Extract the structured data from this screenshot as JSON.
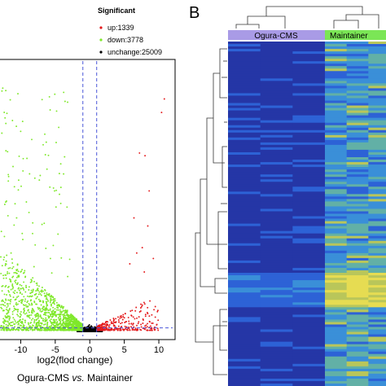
{
  "panel_b_label": "B",
  "chart_data": [
    {
      "type": "scatter",
      "xlabel": "log2(flod change)",
      "caption_prefix": "Ogura-CMS ",
      "caption_italic": "vs.",
      "caption_suffix": " Maintainer",
      "xlim": [
        -13,
        12
      ],
      "ylim": [
        0,
        100
      ],
      "x_ticks": [
        -10,
        -5,
        0,
        5,
        10
      ],
      "x_tick_labels": [
        "-10",
        "-5",
        "0",
        "5",
        "10"
      ],
      "thresholds": {
        "x": [
          -1,
          1
        ],
        "y": 1.3
      },
      "legend": {
        "title": "Significant",
        "placement": "top-right",
        "entries": [
          {
            "label": "up:1339",
            "color": "#e41a1c"
          },
          {
            "label": "down:3778",
            "color": "#7fe82a"
          },
          {
            "label": "unchange:25009",
            "color": "#000000"
          }
        ]
      },
      "series": [
        {
          "label": "up:1339",
          "count": 1339,
          "color": "#e41a1c",
          "outliers": [
            [
              10.8,
              86
            ],
            [
              10.4,
              81
            ],
            [
              7.2,
              66
            ],
            [
              8.0,
              65
            ],
            [
              8.6,
              52
            ],
            [
              6.4,
              42
            ],
            [
              8.4,
              39
            ],
            [
              7.6,
              31
            ],
            [
              6.8,
              29
            ],
            [
              9.2,
              27
            ],
            [
              5.8,
              25
            ],
            [
              7.9,
              22
            ]
          ]
        },
        {
          "label": "down:3778",
          "count": 3778,
          "color": "#7fe82a",
          "outliers": [
            [
              -12.6,
              90
            ],
            [
              -11.2,
              78
            ],
            [
              -10.0,
              74
            ],
            [
              -8.4,
              71
            ],
            [
              -6.3,
              70
            ],
            [
              -9.1,
              64
            ],
            [
              -4.2,
              62
            ],
            [
              -11.8,
              58
            ],
            [
              -7.3,
              56
            ],
            [
              -5.1,
              52
            ],
            [
              -12.3,
              47
            ],
            [
              -3.3,
              46
            ],
            [
              -8.8,
              44
            ],
            [
              -10.6,
              42
            ],
            [
              -6.6,
              40
            ],
            [
              -12.8,
              37
            ],
            [
              -4.6,
              36
            ],
            [
              -9.7,
              34
            ],
            [
              -7.9,
              32
            ],
            [
              -11.4,
              29
            ],
            [
              -5.7,
              27
            ],
            [
              -12.2,
              25
            ]
          ]
        },
        {
          "label": "unchange:25009",
          "count": 25009,
          "color": "#000000"
        }
      ]
    },
    {
      "type": "heatmap",
      "groups": [
        {
          "label": "Ogura-CMS",
          "color": "#a99be6",
          "columns": 3
        },
        {
          "label": "Maintainer",
          "color": "#7be656",
          "columns": 3
        }
      ],
      "column_dendrogram": true,
      "row_dendrogram": true,
      "color_scale": [
        "#2536a6",
        "#2d62d6",
        "#3a8fd8",
        "#62b0a6",
        "#b9c65a",
        "#e6dc52"
      ]
    }
  ]
}
